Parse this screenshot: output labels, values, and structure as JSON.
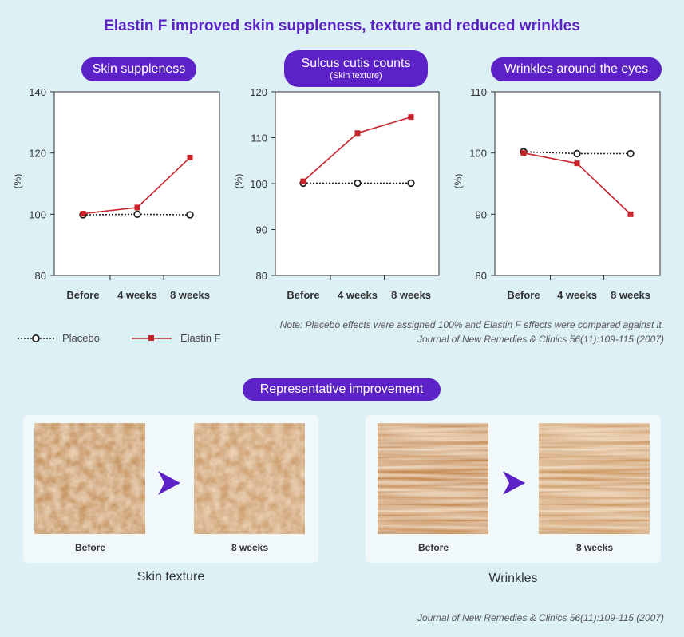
{
  "title": "Elastin F improved skin suppleness, texture and reduced wrinkles",
  "colors": {
    "accent": "#5c21c7",
    "elastin": "#c6232a",
    "placebo": "#222222",
    "background": "#dcf0f6"
  },
  "legend": {
    "placebo": "Placebo",
    "elastin": "Elastin F"
  },
  "note": "Note: Placebo effects were assigned 100% and Elastin F effects were compared against it.",
  "journal": "Journal of New Remedies & Clinics 56(11):109-115 (2007)",
  "representative": {
    "title": "Representative improvement",
    "before_label": "Before",
    "after_label": "8 weeks",
    "texture_caption": "Skin texture",
    "wrinkles_caption": "Wrinkles"
  },
  "chart_data": [
    {
      "type": "line",
      "title": "Skin suppleness",
      "subtitle": "",
      "ylabel": "(%)",
      "categories": [
        "Before",
        "4 weeks",
        "8 weeks"
      ],
      "ylim": [
        80,
        140
      ],
      "yticks": [
        80,
        100,
        120,
        140
      ],
      "series": [
        {
          "name": "Placebo",
          "values": [
            99.8,
            100.0,
            99.8
          ]
        },
        {
          "name": "Elastin F",
          "values": [
            100.2,
            102.2,
            118.5
          ]
        }
      ]
    },
    {
      "type": "line",
      "title": "Sulcus cutis counts",
      "subtitle": "(Skin texture)",
      "ylabel": "(%)",
      "categories": [
        "Before",
        "4 weeks",
        "8 weeks"
      ],
      "ylim": [
        80,
        120
      ],
      "yticks": [
        80,
        90,
        100,
        110,
        120
      ],
      "series": [
        {
          "name": "Placebo",
          "values": [
            100.1,
            100.1,
            100.1
          ]
        },
        {
          "name": "Elastin F",
          "values": [
            100.5,
            111.0,
            114.5
          ]
        }
      ]
    },
    {
      "type": "line",
      "title": "Wrinkles around the eyes",
      "subtitle": "",
      "ylabel": "(%)",
      "categories": [
        "Before",
        "4 weeks",
        "8 weeks"
      ],
      "ylim": [
        80,
        110
      ],
      "yticks": [
        80,
        90,
        100,
        110
      ],
      "series": [
        {
          "name": "Placebo",
          "values": [
            100.2,
            99.9,
            99.9
          ]
        },
        {
          "name": "Elastin F",
          "values": [
            100.0,
            98.3,
            90.0
          ]
        }
      ]
    }
  ]
}
